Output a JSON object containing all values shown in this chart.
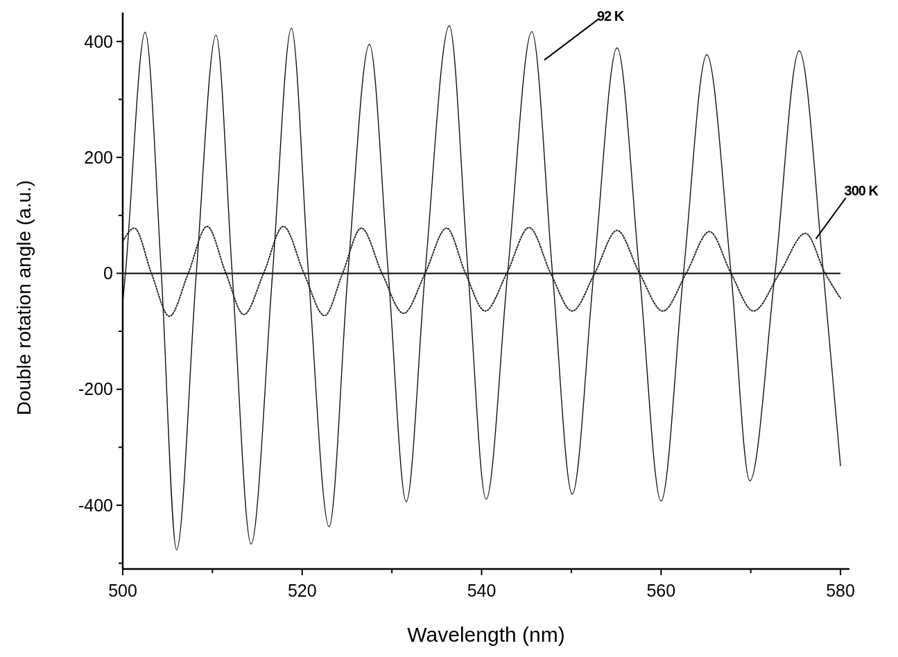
{
  "chart_data": {
    "type": "line",
    "xlabel": "Wavelength (nm)",
    "ylabel": "Double rotation angle (a.u.)",
    "xlim": [
      500,
      581
    ],
    "xticks": [
      500,
      {
        "value": 510,
        "label": null
      },
      520,
      {
        "value": 530,
        "label": null
      },
      540,
      {
        "value": 550,
        "label": null
      },
      560,
      {
        "value": 570,
        "label": null
      },
      580
    ],
    "ylim": [
      -510,
      450
    ],
    "yticks": [
      {
        "value": -500,
        "label": null
      },
      -400,
      {
        "value": -300,
        "label": null
      },
      -200,
      {
        "value": -100,
        "label": null
      },
      0,
      {
        "value": 100,
        "label": null
      },
      200,
      {
        "value": 300,
        "label": null
      },
      400
    ],
    "grid": false,
    "marker": "none",
    "ref_lines": [
      {
        "axis": "y",
        "value": 0,
        "color": "#000000",
        "line_style": "solid"
      }
    ],
    "series": [
      {
        "name": "92 K",
        "color": "#111111",
        "line_style": "solid",
        "x": [
          500,
          500.3,
          502.5,
          504.3,
          506.0,
          508.2,
          510.4,
          512.2,
          514.3,
          516.7,
          518.8,
          520.7,
          523.0,
          525.1,
          527.5,
          529.6,
          531.6,
          533.7,
          536.4,
          538.5,
          540.5,
          542.9,
          545.6,
          547.9,
          550.1,
          552.5,
          555.1,
          557.6,
          560.0,
          562.5,
          565.1,
          567.8,
          569.9,
          572.7,
          575.4,
          578.1,
          580
        ],
        "values": [
          -50,
          0,
          416,
          0,
          -477,
          0,
          411,
          0,
          -467,
          0,
          423,
          0,
          -437,
          0,
          395,
          0,
          -394,
          0,
          427,
          0,
          -390,
          0,
          417,
          0,
          -381,
          0,
          389,
          0,
          -393,
          0,
          377,
          0,
          -358,
          0,
          384,
          0,
          -332
        ]
      },
      {
        "name": "300 K",
        "color": "#222222",
        "line_style": "dotted",
        "x": [
          500,
          501.3,
          503.2,
          505.2,
          507.3,
          509.4,
          511.5,
          513.5,
          515.7,
          517.9,
          520.2,
          522.5,
          524.5,
          526.6,
          528.9,
          531.3,
          533.7,
          536.1,
          538.2,
          540.4,
          542.8,
          545.3,
          547.7,
          550.1,
          552.6,
          555.1,
          557.6,
          560.2,
          562.8,
          565.4,
          567.8,
          570.3,
          573.2,
          576.1,
          578.3,
          580
        ],
        "values": [
          55,
          78,
          0,
          -74,
          0,
          81,
          0,
          -71,
          0,
          81,
          0,
          -73,
          0,
          78,
          0,
          -69,
          0,
          78,
          0,
          -65,
          0,
          79,
          0,
          -65,
          0,
          74,
          0,
          -65,
          0,
          72,
          0,
          -65,
          0,
          69,
          0,
          -43
        ]
      }
    ]
  }
}
